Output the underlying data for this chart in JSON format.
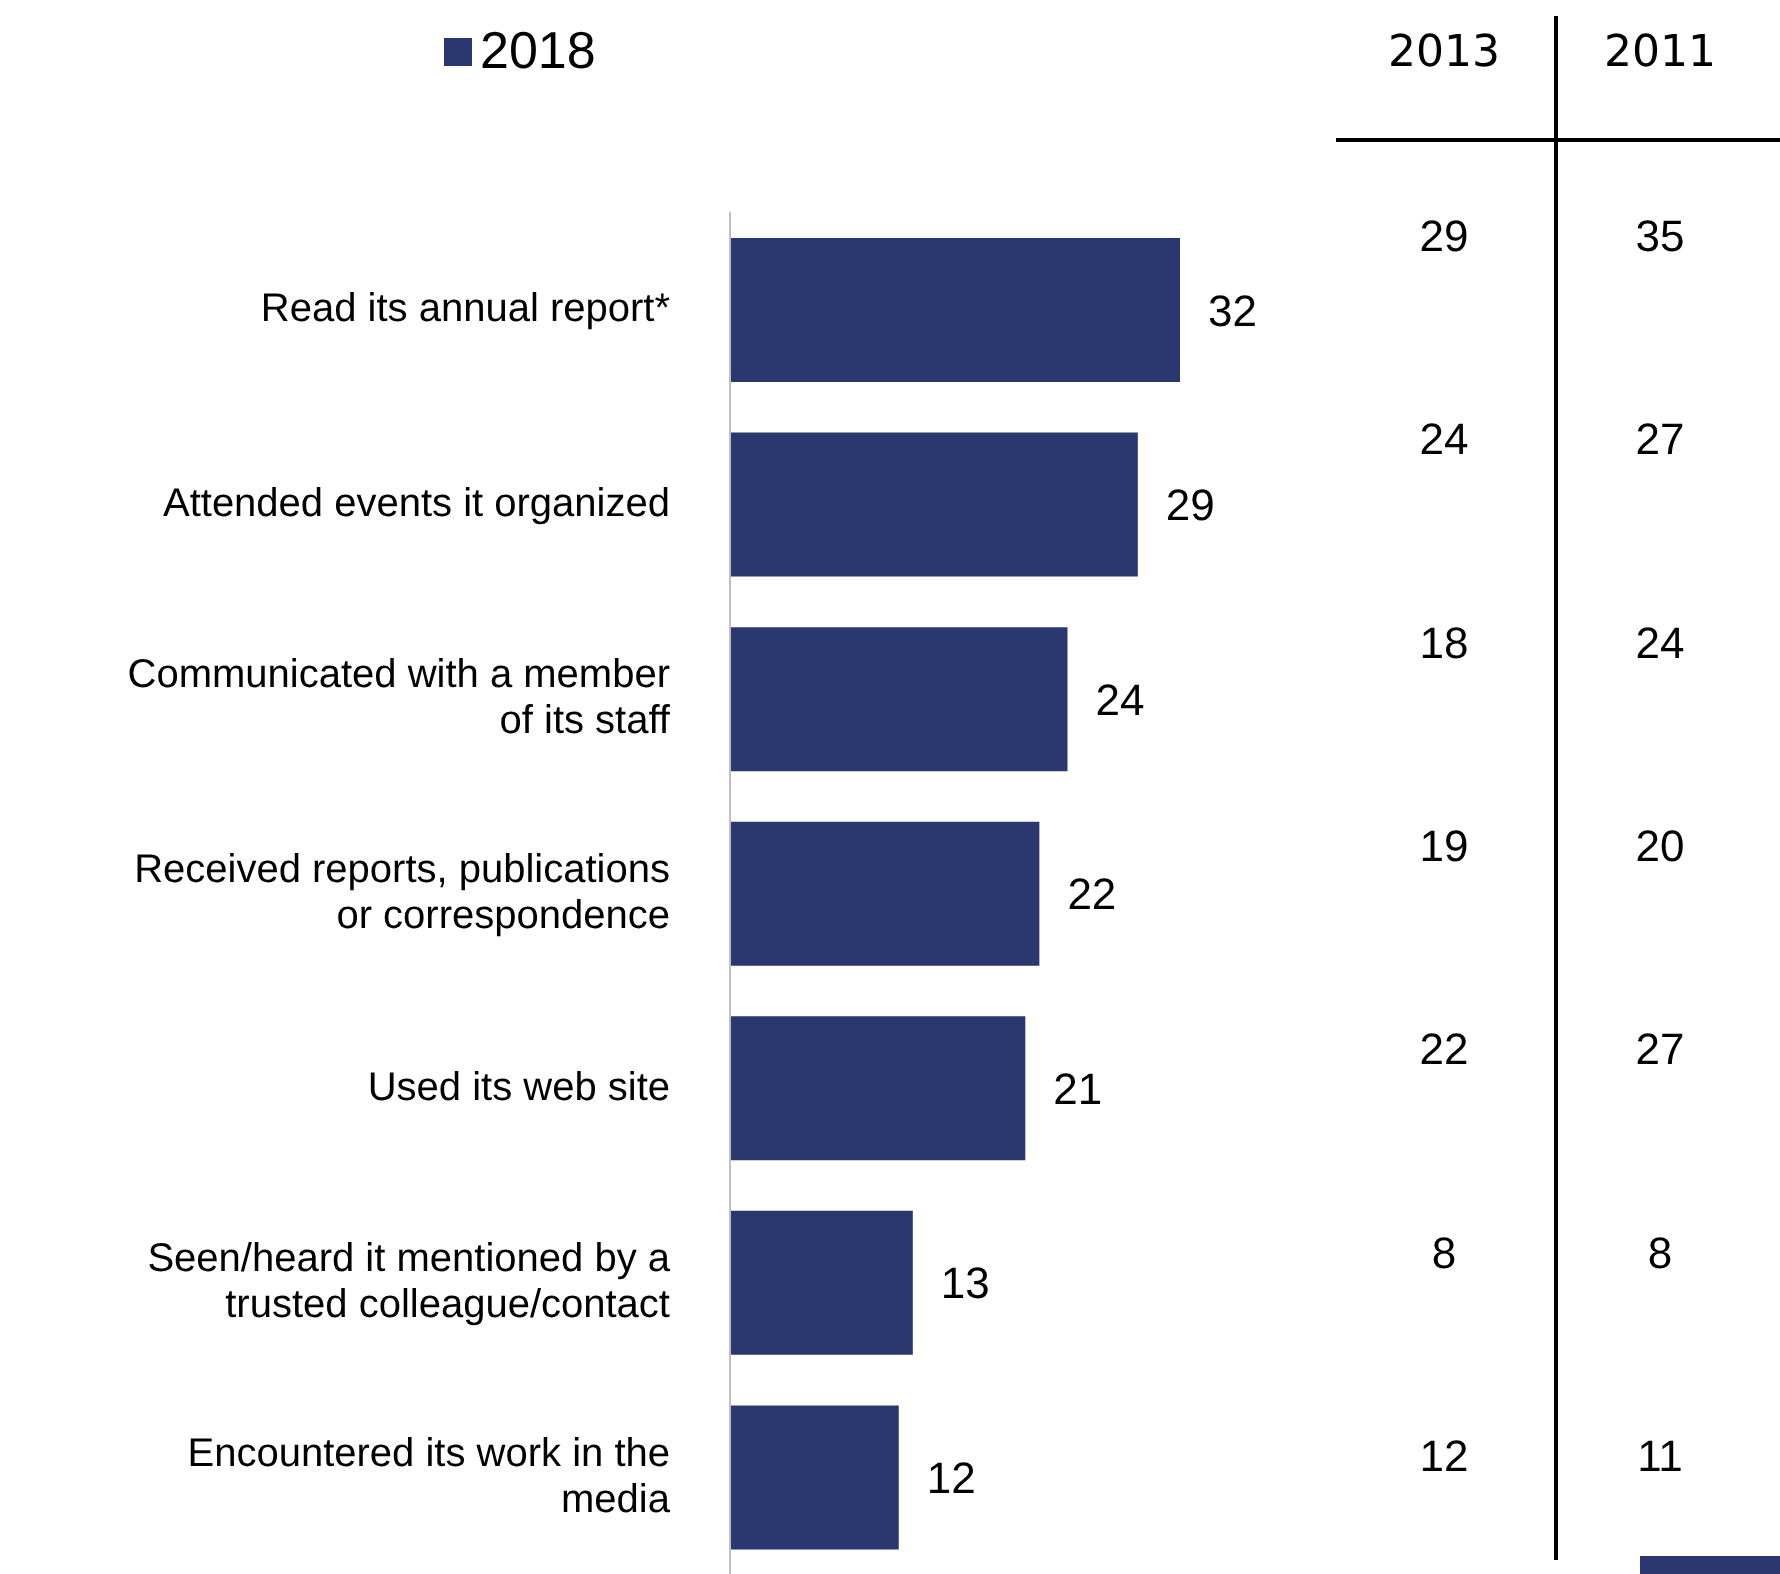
{
  "chart_data": [
    {
      "type": "bar",
      "orientation": "horizontal",
      "categories": [
        "Read its annual report*",
        "Attended events it organized",
        "Communicated with a member of its staff",
        "Received reports, publications or correspondence",
        "Used its web site",
        "Seen/heard it mentioned by a trusted colleague/contact",
        "Encountered its work in the media"
      ],
      "series": [
        {
          "name": "2018",
          "color": "#2b3870",
          "values": [
            32,
            29,
            24,
            22,
            21,
            13,
            12
          ]
        }
      ],
      "data_labels": true,
      "legend": "top",
      "grid": false
    },
    {
      "type": "other",
      "categories": [
        "2013",
        "2011"
      ],
      "annotations": [
        "29",
        "35",
        "24",
        "27",
        "18",
        "24",
        "19",
        "20",
        "22",
        "27",
        "8",
        "8",
        "12",
        "11"
      ]
    }
  ]
}
